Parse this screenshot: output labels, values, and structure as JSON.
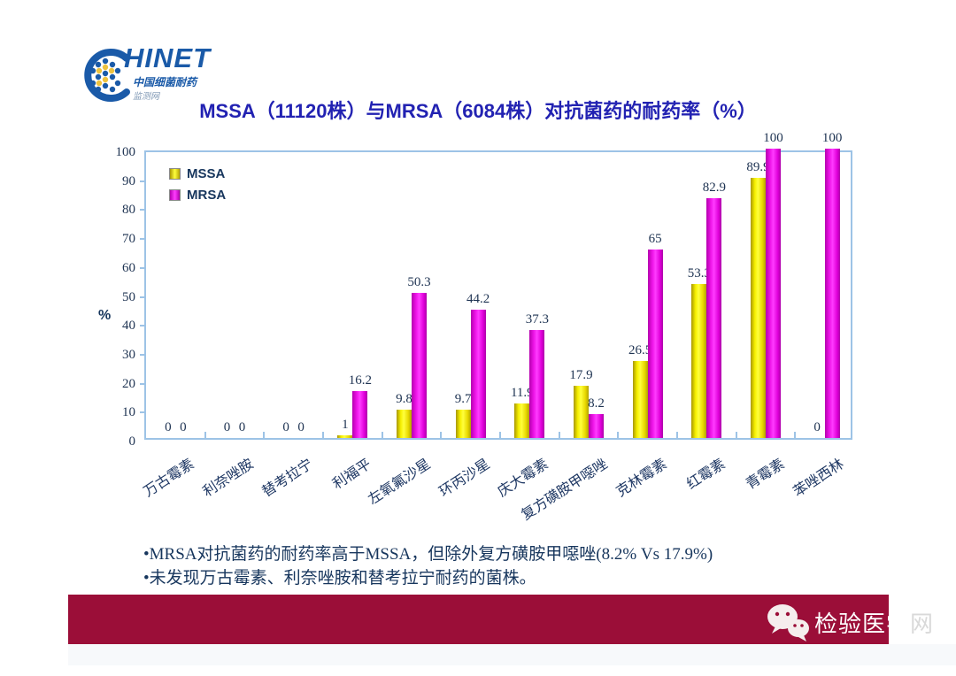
{
  "logo": {
    "text": "HINET",
    "subtitle1": "中国细菌耐药",
    "subtitle2": "监测网"
  },
  "title": "MSSA（11120株）与MRSA（6084株）对抗菌药的耐药率（%）",
  "chart_data": {
    "type": "bar",
    "title": "MSSA（11120株）与MRSA（6084株）对抗菌药的耐药率（%）",
    "categories": [
      "万古霉素",
      "利奈唑胺",
      "替考拉宁",
      "利福平",
      "左氧氟沙星",
      "环丙沙星",
      "庆大霉素",
      "复方磺胺甲噁唑",
      "克林霉素",
      "红霉素",
      "青霉素",
      "苯唑西林"
    ],
    "series": [
      {
        "name": "MSSA",
        "color": "#ffff00",
        "values": [
          0,
          0,
          0,
          1,
          9.8,
          9.7,
          11.9,
          17.9,
          26.5,
          53.3,
          89.9,
          0
        ]
      },
      {
        "name": "MRSA",
        "color": "#ee14e8",
        "values": [
          0,
          0,
          0,
          16.2,
          50.3,
          44.2,
          37.3,
          8.2,
          65,
          82.9,
          100,
          100
        ]
      }
    ],
    "xlabel": "",
    "ylabel": "%",
    "ylim": [
      0,
      100
    ],
    "ytick_step": 10,
    "grid": false,
    "legend_position": "top-left",
    "axis_color": "#9dc3e6"
  },
  "notes": [
    "•MRSA对抗菌药的耐药率高于MSSA，但除外复方磺胺甲噁唑(8.2% Vs 17.9%)",
    "•未发现万古霉素、利奈唑胺和替考拉宁耐药的菌株。"
  ],
  "footer": {
    "brand_main": "检验医学",
    "brand_tail": "网",
    "icon": "wechat-icon",
    "bar_color": "#9b0e38"
  }
}
